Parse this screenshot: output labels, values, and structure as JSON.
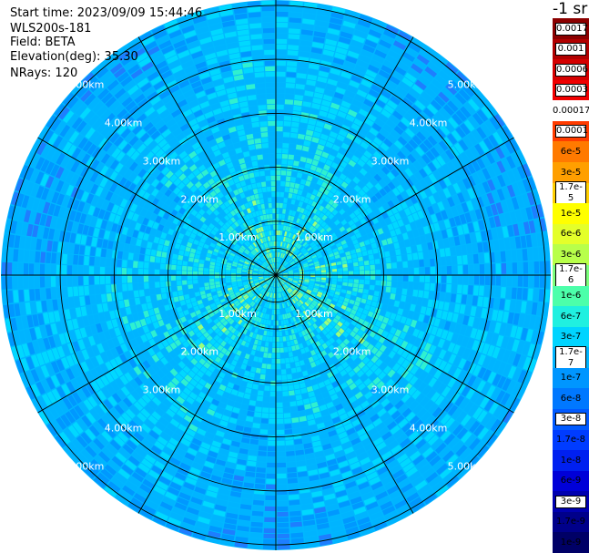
{
  "header": {
    "start_time": "Start time: 2023/09/09 15:44:46",
    "instrument": "WLS200s-181",
    "field": "Field: BETA",
    "elevation": "Elevation(deg): 35.30",
    "nrays": "NRays: 120"
  },
  "colorbar": {
    "title": "-1 sr",
    "labels": [
      "0.0017",
      "0.001",
      "0.0006",
      "0.0003",
      "0.00017",
      "0.0001",
      "6e-5",
      "3e-5",
      "1.7e-5",
      "1e-5",
      "6e-6",
      "3e-6",
      "1.7e-6",
      "1e-6",
      "6e-7",
      "3e-7",
      "1.7e-7",
      "1e-7",
      "6e-8",
      "3e-8",
      "1.7e-8",
      "1e-8",
      "6e-9",
      "3e-9",
      "1.7e-9",
      "1e-9"
    ],
    "colors": [
      "#8b0000",
      "#b00000",
      "#d40000",
      "#f00000",
      "#ffffff",
      "#ff3c00",
      "#ff7a00",
      "#ff9f00",
      "#ffcf00",
      "#ffff00",
      "#e4ff2a",
      "#b8ff4a",
      "#7cff7c",
      "#4cffaa",
      "#20f0e0",
      "#00d4ff",
      "#00b4ff",
      "#0096ff",
      "#0078ff",
      "#005aff",
      "#003cff",
      "#0020f0",
      "#0000d8",
      "#0000b0",
      "#00008a",
      "#000066"
    ],
    "boxed_labels": [
      0,
      1,
      2,
      3,
      5,
      8,
      12,
      16,
      19,
      23
    ]
  },
  "chart_data": {
    "type": "heatmap",
    "projection": "polar-ppi",
    "field": "BETA",
    "unit": "sr-1",
    "n_rays": 120,
    "max_range_km": 5.1,
    "range_ring_labels": [
      "1.00km",
      "2.00km",
      "3.00km",
      "4.00km",
      "5.00km"
    ],
    "range_rings_km": [
      1,
      2,
      3,
      4,
      5
    ],
    "azimuth_lines_deg": [
      0,
      30,
      60,
      90,
      120,
      150,
      180,
      210,
      240,
      270,
      300,
      330
    ],
    "typical_value_near_center": "1.7e-7",
    "typical_value_far_range": "6e-8",
    "grid": true
  }
}
